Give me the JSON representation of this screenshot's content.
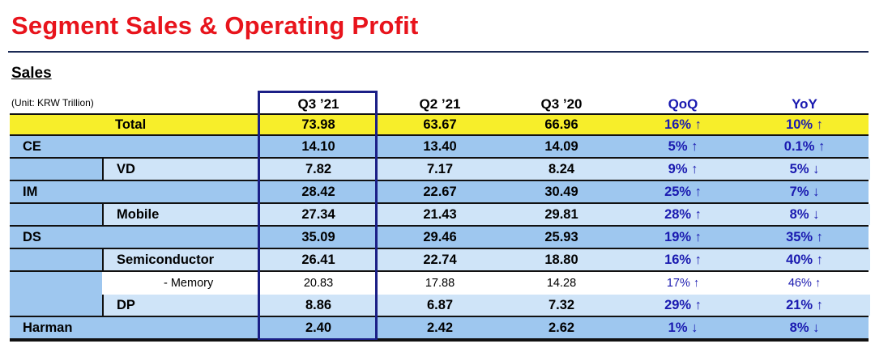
{
  "title": "Segment Sales & Operating Profit",
  "section": "Sales",
  "unit": "(Unit: KRW Trillion)",
  "columns": [
    "Q3 ’21",
    "Q2 ’21",
    "Q3 ’20",
    "QoQ",
    "YoY"
  ],
  "rows": [
    {
      "name": "Total",
      "level": "total",
      "values": [
        "73.98",
        "63.67",
        "66.96",
        "16% ↑",
        "10% ↑"
      ]
    },
    {
      "name": "CE",
      "level": "l1",
      "values": [
        "14.10",
        "13.40",
        "14.09",
        "5% ↑",
        "0.1% ↑"
      ]
    },
    {
      "name": "VD",
      "level": "l2",
      "values": [
        "7.82",
        "7.17",
        "8.24",
        "9% ↑",
        "5% ↓"
      ]
    },
    {
      "name": "IM",
      "level": "l1",
      "values": [
        "28.42",
        "22.67",
        "30.49",
        "25% ↑",
        "7% ↓"
      ]
    },
    {
      "name": "Mobile",
      "level": "l2",
      "values": [
        "27.34",
        "21.43",
        "29.81",
        "28% ↑",
        "8% ↓"
      ]
    },
    {
      "name": "DS",
      "level": "l1",
      "values": [
        "35.09",
        "29.46",
        "25.93",
        "19% ↑",
        "35% ↑"
      ]
    },
    {
      "name": "Semiconductor",
      "level": "l2",
      "values": [
        "26.41",
        "22.74",
        "18.80",
        "16% ↑",
        "40% ↑"
      ]
    },
    {
      "name": "- Memory",
      "level": "l3",
      "values": [
        "20.83",
        "17.88",
        "14.28",
        "17% ↑",
        "46% ↑"
      ]
    },
    {
      "name": "DP",
      "level": "l2",
      "values": [
        "8.86",
        "6.87",
        "7.32",
        "29% ↑",
        "21% ↑"
      ]
    },
    {
      "name": "Harman",
      "level": "l1",
      "values": [
        "2.40",
        "2.42",
        "2.62",
        "1% ↓",
        "8% ↓"
      ]
    }
  ],
  "colors": {
    "title": "#e8141c",
    "total_row": "#f7ee2a",
    "segment_row": "#9ec7ef",
    "sub_row": "#cfe4f8",
    "change_text": "#1a1ab0",
    "highlight_border": "#1b1f86"
  }
}
